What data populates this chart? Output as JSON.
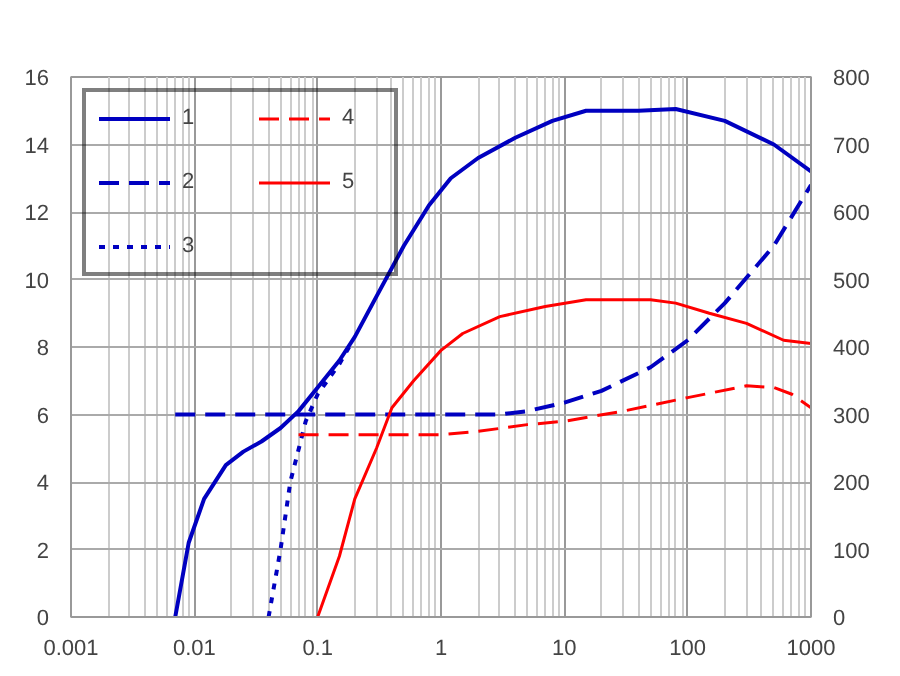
{
  "chart_data": {
    "type": "line",
    "log": "x",
    "xlim": [
      0.001,
      1000
    ],
    "xticks": [
      0.001,
      0.01,
      0.1,
      1,
      10,
      100,
      1000
    ],
    "ylim": [
      0,
      16
    ],
    "yticks": [
      0,
      2,
      4,
      6,
      8,
      10,
      12,
      14,
      16
    ],
    "y2lim": [
      0,
      800
    ],
    "y2ticks": [
      0,
      100,
      200,
      300,
      400,
      500,
      600,
      700,
      800
    ],
    "grid": true,
    "legend": "top left",
    "marker": "none",
    "series": [
      {
        "name": "1",
        "color": "#0000c0",
        "line_style": "solid",
        "x": [
          0.007,
          0.009,
          0.012,
          0.018,
          0.025,
          0.035,
          0.05,
          0.07,
          0.1,
          0.15,
          0.2,
          0.3,
          0.5,
          0.8,
          1.2,
          2,
          4,
          8,
          15,
          40,
          80,
          200,
          500,
          1000
        ],
        "values": [
          0,
          2.2,
          3.5,
          4.5,
          4.9,
          5.2,
          5.6,
          6.1,
          6.8,
          7.6,
          8.3,
          9.5,
          11,
          12.2,
          13,
          13.6,
          14.2,
          14.7,
          15,
          15,
          15.05,
          14.7,
          14,
          13.2
        ]
      },
      {
        "name": "2",
        "color": "#0000c0",
        "line_style": "dashed",
        "x": [
          0.007,
          0.1,
          1,
          3,
          5,
          10,
          20,
          50,
          100,
          200,
          500,
          1000
        ],
        "values": [
          6,
          6,
          6,
          6,
          6.1,
          6.35,
          6.7,
          7.4,
          8.2,
          9.3,
          11,
          12.8
        ]
      },
      {
        "name": "3",
        "color": "#0000c0",
        "line_style": "dotted",
        "x": [
          0.04,
          0.05,
          0.06,
          0.08,
          0.1,
          0.15,
          0.18
        ],
        "values": [
          0,
          2,
          4,
          5.8,
          6.6,
          7.5,
          8
        ]
      },
      {
        "name": "4",
        "color": "#ff0000",
        "line_style": "dashed",
        "x": [
          0.07,
          0.3,
          1,
          2,
          5,
          10,
          30,
          100,
          300,
          500,
          700,
          1000
        ],
        "values": [
          5.4,
          5.4,
          5.4,
          5.5,
          5.7,
          5.8,
          6.1,
          6.5,
          6.85,
          6.8,
          6.6,
          6.2
        ]
      },
      {
        "name": "5",
        "color": "#ff0000",
        "line_style": "solid",
        "x": [
          0.1,
          0.15,
          0.2,
          0.3,
          0.4,
          0.6,
          1,
          1.5,
          3,
          7,
          15,
          50,
          80,
          150,
          300,
          600,
          1000
        ],
        "values": [
          0,
          1.8,
          3.5,
          5,
          6.2,
          7,
          7.9,
          8.4,
          8.9,
          9.2,
          9.4,
          9.4,
          9.3,
          9.0,
          8.7,
          8.2,
          8.1
        ]
      }
    ]
  }
}
